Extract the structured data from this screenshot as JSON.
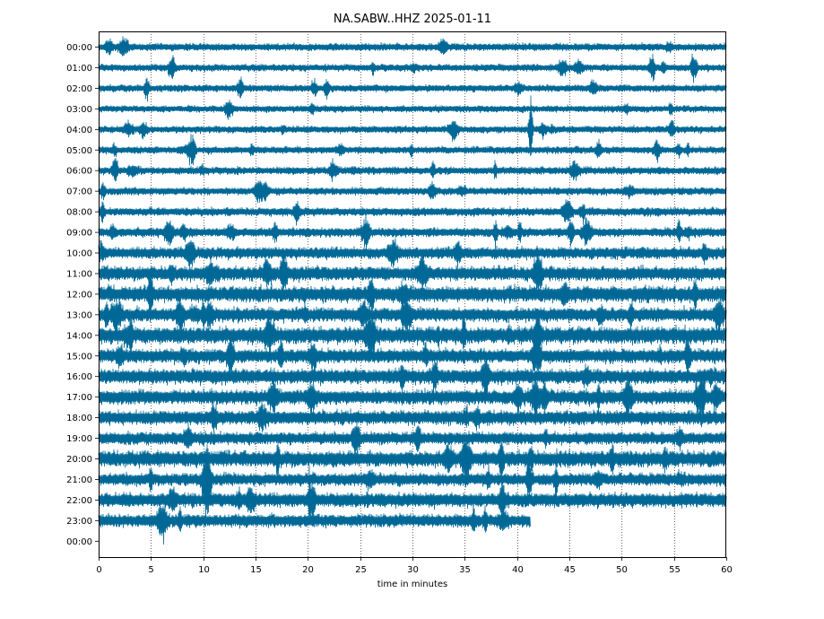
{
  "chart_data": {
    "type": "line",
    "title": "NA.SABW..HHZ 2025-01-11",
    "xlabel": "time in minutes",
    "ylabel": "",
    "xlim": [
      0,
      60
    ],
    "x_ticks": [
      "0",
      "5",
      "10",
      "15",
      "20",
      "25",
      "30",
      "35",
      "40",
      "45",
      "50",
      "55",
      "60"
    ],
    "vertical_grid": "dotted",
    "trace_color": "#006896",
    "row_labels": [
      "00:00",
      "01:00",
      "02:00",
      "03:00",
      "04:00",
      "05:00",
      "06:00",
      "07:00",
      "08:00",
      "09:00",
      "10:00",
      "11:00",
      "12:00",
      "13:00",
      "14:00",
      "15:00",
      "16:00",
      "17:00",
      "18:00",
      "19:00",
      "20:00",
      "21:00",
      "22:00",
      "23:00",
      "00:00"
    ],
    "rows": [
      {
        "hour": "00:00",
        "end_minute": 60,
        "amplitude": 0.18
      },
      {
        "hour": "01:00",
        "end_minute": 60,
        "amplitude": 0.17
      },
      {
        "hour": "02:00",
        "end_minute": 60,
        "amplitude": 0.17
      },
      {
        "hour": "03:00",
        "end_minute": 60,
        "amplitude": 0.16
      },
      {
        "hour": "04:00",
        "end_minute": 60,
        "amplitude": 0.17
      },
      {
        "hour": "05:00",
        "end_minute": 60,
        "amplitude": 0.17
      },
      {
        "hour": "06:00",
        "end_minute": 60,
        "amplitude": 0.18
      },
      {
        "hour": "07:00",
        "end_minute": 60,
        "amplitude": 0.18
      },
      {
        "hour": "08:00",
        "end_minute": 60,
        "amplitude": 0.2
      },
      {
        "hour": "09:00",
        "end_minute": 60,
        "amplitude": 0.22
      },
      {
        "hour": "10:00",
        "end_minute": 60,
        "amplitude": 0.28
      },
      {
        "hour": "11:00",
        "end_minute": 60,
        "amplitude": 0.34
      },
      {
        "hour": "12:00",
        "end_minute": 60,
        "amplitude": 0.38
      },
      {
        "hour": "13:00",
        "end_minute": 60,
        "amplitude": 0.34
      },
      {
        "hour": "14:00",
        "end_minute": 60,
        "amplitude": 0.4
      },
      {
        "hour": "15:00",
        "end_minute": 60,
        "amplitude": 0.34
      },
      {
        "hour": "16:00",
        "end_minute": 60,
        "amplitude": 0.36
      },
      {
        "hour": "17:00",
        "end_minute": 60,
        "amplitude": 0.35
      },
      {
        "hour": "18:00",
        "end_minute": 60,
        "amplitude": 0.34
      },
      {
        "hour": "19:00",
        "end_minute": 60,
        "amplitude": 0.3
      },
      {
        "hour": "20:00",
        "end_minute": 60,
        "amplitude": 0.38
      },
      {
        "hour": "21:00",
        "end_minute": 60,
        "amplitude": 0.3
      },
      {
        "hour": "22:00",
        "end_minute": 60,
        "amplitude": 0.34
      },
      {
        "hour": "23:00",
        "end_minute": 41.3,
        "amplitude": 0.3
      },
      {
        "hour": "00:00",
        "end_minute": 0,
        "amplitude": 0
      }
    ]
  }
}
